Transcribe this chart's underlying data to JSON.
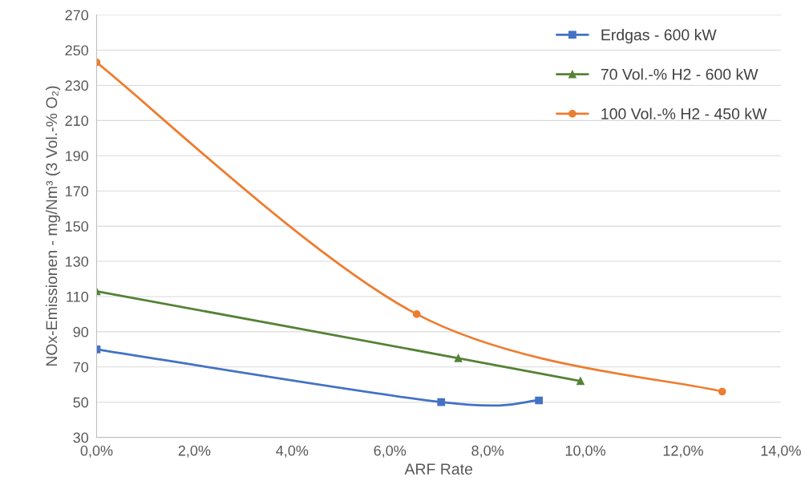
{
  "chart_data": {
    "type": "line",
    "xlabel": "ARF Rate",
    "ylabel": "NOx-Emissionen - mg/Nm³ (3 Vol.-% O₂)",
    "xlim": [
      0,
      14
    ],
    "ylim": [
      30,
      270
    ],
    "xticks": [
      {
        "value": 0,
        "label": "0,0%"
      },
      {
        "value": 2,
        "label": "2,0%"
      },
      {
        "value": 4,
        "label": "4,0%"
      },
      {
        "value": 6,
        "label": "6,0%"
      },
      {
        "value": 8,
        "label": "8,0%"
      },
      {
        "value": 10,
        "label": "10,0%"
      },
      {
        "value": 12,
        "label": "12,0%"
      },
      {
        "value": 14,
        "label": "14,0%"
      }
    ],
    "yticks": [
      30,
      50,
      70,
      90,
      110,
      130,
      150,
      170,
      190,
      210,
      230,
      250,
      270
    ],
    "grid": "y",
    "legend": "top right",
    "line_style": "solid",
    "series": [
      {
        "name": "Erdgas - 600 kW",
        "color": "#4472c4",
        "marker": "square",
        "x": [
          0,
          7.05,
          9.05
        ],
        "values": [
          80,
          50,
          51
        ]
      },
      {
        "name": "70 Vol.-% H2 - 600 kW",
        "color": "#548235",
        "marker": "triangle",
        "x": [
          0,
          7.4,
          9.9
        ],
        "values": [
          113,
          75,
          62
        ]
      },
      {
        "name": "100 Vol.-% H2 - 450 kW",
        "color": "#ed7d31",
        "marker": "circle",
        "x": [
          0,
          6.55,
          12.8
        ],
        "values": [
          243,
          100,
          56
        ]
      }
    ]
  }
}
